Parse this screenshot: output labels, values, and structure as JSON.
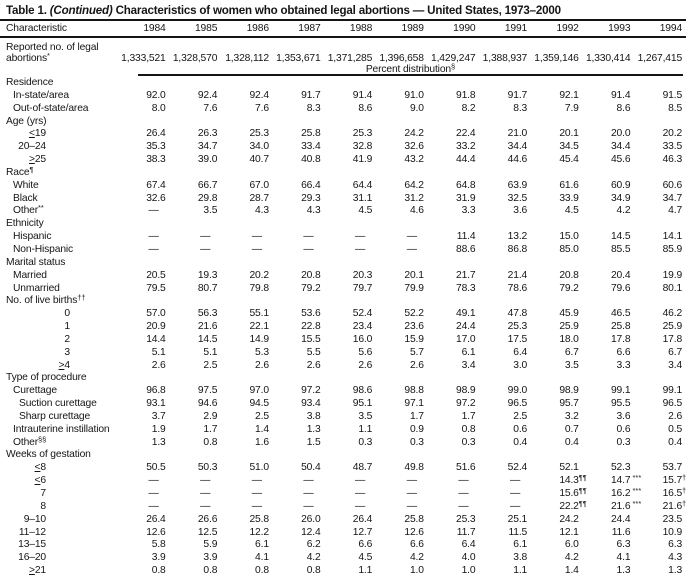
{
  "table": {
    "title_prefix": "Table 1. ",
    "title_continued": "(Continued)",
    "title_rest": " Characteristics of women who obtained legal abortions — United States, 1973–2000",
    "col_header": "Characteristic",
    "years": [
      "1984",
      "1985",
      "1986",
      "1987",
      "1988",
      "1989",
      "1990",
      "1991",
      "1992",
      "1993",
      "1994"
    ],
    "reported_label_line1": "Reported no. of legal",
    "reported_label_line2": "abortions",
    "reported_marker": "*",
    "reported_values": [
      "1,333,521",
      "1,328,570",
      "1,328,112",
      "1,353,671",
      "1,371,285",
      "1,396,658",
      "1,429,247",
      "1,388,937",
      "1,359,146",
      "1,330,414",
      "1,267,415"
    ],
    "subheader": "Percent distribution",
    "subheader_marker": "§",
    "rows": [
      {
        "t": "g",
        "ind": "g",
        "label": "Residence"
      },
      {
        "t": "r",
        "ind": "i1",
        "label": "In-state/area",
        "v": [
          "92.0",
          "92.4",
          "92.4",
          "91.7",
          "91.4",
          "91.0",
          "91.8",
          "91.7",
          "92.1",
          "91.4",
          "91.5"
        ]
      },
      {
        "t": "r",
        "ind": "i1",
        "label": "Out-of-state/area",
        "v": [
          "8.0",
          "7.6",
          "7.6",
          "8.3",
          "8.6",
          "9.0",
          "8.2",
          "8.3",
          "7.9",
          "8.6",
          "8.5"
        ]
      },
      {
        "t": "g",
        "ind": "g",
        "label": "Age (yrs)"
      },
      {
        "t": "r",
        "ind": "rn",
        "label": "≤19",
        "v": [
          "26.4",
          "26.3",
          "25.3",
          "25.8",
          "25.3",
          "24.2",
          "22.4",
          "21.0",
          "20.1",
          "20.0",
          "20.2"
        ]
      },
      {
        "t": "r",
        "ind": "rn",
        "label": "20–24",
        "v": [
          "35.3",
          "34.7",
          "34.0",
          "33.4",
          "32.8",
          "32.6",
          "33.2",
          "34.4",
          "34.5",
          "34.4",
          "33.5"
        ]
      },
      {
        "t": "r",
        "ind": "rn",
        "label": "≥25",
        "v": [
          "38.3",
          "39.0",
          "40.7",
          "40.8",
          "41.9",
          "43.2",
          "44.4",
          "44.6",
          "45.4",
          "45.6",
          "46.3"
        ]
      },
      {
        "t": "g",
        "ind": "g",
        "label": "Race",
        "marker": "¶"
      },
      {
        "t": "r",
        "ind": "i1",
        "label": "White",
        "v": [
          "67.4",
          "66.7",
          "67.0",
          "66.4",
          "64.4",
          "64.2",
          "64.8",
          "63.9",
          "61.6",
          "60.9",
          "60.6"
        ]
      },
      {
        "t": "r",
        "ind": "i1",
        "label": "Black",
        "v": [
          "32.6",
          "29.8",
          "28.7",
          "29.3",
          "31.1",
          "31.2",
          "31.9",
          "32.5",
          "33.9",
          "34.9",
          "34.7"
        ]
      },
      {
        "t": "r",
        "ind": "i1",
        "label": "Other",
        "marker": "**",
        "v": [
          "—",
          "3.5",
          "4.3",
          "4.3",
          "4.5",
          "4.6",
          "3.3",
          "3.6",
          "4.5",
          "4.2",
          "4.7"
        ]
      },
      {
        "t": "g",
        "ind": "g",
        "label": "Ethnicity"
      },
      {
        "t": "r",
        "ind": "i1",
        "label": "Hispanic",
        "v": [
          "—",
          "—",
          "—",
          "—",
          "—",
          "—",
          "11.4",
          "13.2",
          "15.0",
          "14.5",
          "14.1"
        ]
      },
      {
        "t": "r",
        "ind": "i1",
        "label": "Non-Hispanic",
        "v": [
          "—",
          "—",
          "—",
          "—",
          "—",
          "—",
          "88.6",
          "86.8",
          "85.0",
          "85.5",
          "85.9"
        ]
      },
      {
        "t": "g",
        "ind": "g",
        "label": "Marital status"
      },
      {
        "t": "r",
        "ind": "i1",
        "label": "Married",
        "v": [
          "20.5",
          "19.3",
          "20.2",
          "20.8",
          "20.3",
          "20.1",
          "21.7",
          "21.4",
          "20.8",
          "20.4",
          "19.9"
        ]
      },
      {
        "t": "r",
        "ind": "i1",
        "label": "Unmarried",
        "v": [
          "79.5",
          "80.7",
          "79.8",
          "79.2",
          "79.7",
          "79.9",
          "78.3",
          "78.6",
          "79.2",
          "79.6",
          "80.1"
        ]
      },
      {
        "t": "g",
        "ind": "g",
        "label": "No. of live births",
        "marker": "††"
      },
      {
        "t": "r",
        "ind": "rb",
        "label": "0",
        "v": [
          "57.0",
          "56.3",
          "55.1",
          "53.6",
          "52.4",
          "52.2",
          "49.1",
          "47.8",
          "45.9",
          "46.5",
          "46.2"
        ]
      },
      {
        "t": "r",
        "ind": "rb",
        "label": "1",
        "v": [
          "20.9",
          "21.6",
          "22.1",
          "22.8",
          "23.4",
          "23.6",
          "24.4",
          "25.3",
          "25.9",
          "25.8",
          "25.9"
        ]
      },
      {
        "t": "r",
        "ind": "rb",
        "label": "2",
        "v": [
          "14.4",
          "14.5",
          "14.9",
          "15.5",
          "16.0",
          "15.9",
          "17.0",
          "17.5",
          "18.0",
          "17.8",
          "17.8"
        ]
      },
      {
        "t": "r",
        "ind": "rb",
        "label": "3",
        "v": [
          "5.1",
          "5.1",
          "5.3",
          "5.5",
          "5.6",
          "5.7",
          "6.1",
          "6.4",
          "6.7",
          "6.6",
          "6.7"
        ]
      },
      {
        "t": "r",
        "ind": "rb",
        "label": "≥4",
        "v": [
          "2.6",
          "2.5",
          "2.6",
          "2.6",
          "2.6",
          "2.6",
          "3.4",
          "3.0",
          "3.5",
          "3.3",
          "3.4"
        ]
      },
      {
        "t": "g",
        "ind": "g",
        "label": "Type of procedure"
      },
      {
        "t": "r",
        "ind": "i1",
        "label": "Curettage",
        "v": [
          "96.8",
          "97.5",
          "97.0",
          "97.2",
          "98.6",
          "98.8",
          "98.9",
          "99.0",
          "98.9",
          "99.1",
          "99.1"
        ]
      },
      {
        "t": "r",
        "ind": "i2",
        "label": "Suction curettage",
        "v": [
          "93.1",
          "94.6",
          "94.5",
          "93.4",
          "95.1",
          "97.1",
          "97.2",
          "96.5",
          "95.7",
          "95.5",
          "96.5"
        ]
      },
      {
        "t": "r",
        "ind": "i2",
        "label": "Sharp curettage",
        "v": [
          "3.7",
          "2.9",
          "2.5",
          "3.8",
          "3.5",
          "1.7",
          "1.7",
          "2.5",
          "3.2",
          "3.6",
          "2.6"
        ]
      },
      {
        "t": "r",
        "ind": "i1",
        "label": "Intrauterine instillation",
        "v": [
          "1.9",
          "1.7",
          "1.4",
          "1.3",
          "1.1",
          "0.9",
          "0.8",
          "0.6",
          "0.7",
          "0.6",
          "0.5"
        ]
      },
      {
        "t": "r",
        "ind": "i1",
        "label": "Other",
        "marker": "§§",
        "v": [
          "1.3",
          "0.8",
          "1.6",
          "1.5",
          "0.3",
          "0.3",
          "0.3",
          "0.4",
          "0.4",
          "0.3",
          "0.4"
        ]
      },
      {
        "t": "g",
        "ind": "g",
        "label": "Weeks of gestation"
      },
      {
        "t": "r",
        "ind": "rn",
        "label": "≤8",
        "v": [
          "50.5",
          "50.3",
          "51.0",
          "50.4",
          "48.7",
          "49.8",
          "51.6",
          "52.4",
          "52.1",
          "52.3",
          "53.7"
        ]
      },
      {
        "t": "r",
        "ind": "rn",
        "label": "≤6",
        "v": [
          "—",
          "—",
          "—",
          "—",
          "—",
          "—",
          "—",
          "—",
          "14.3¶¶",
          "14.7 ***",
          "15.7†††"
        ]
      },
      {
        "t": "r",
        "ind": "rn",
        "label": "7",
        "v": [
          "—",
          "—",
          "—",
          "—",
          "—",
          "—",
          "—",
          "—",
          "15.6¶¶",
          "16.2 ***",
          "16.5†††"
        ]
      },
      {
        "t": "r",
        "ind": "rn",
        "label": "8",
        "v": [
          "—",
          "—",
          "—",
          "—",
          "—",
          "—",
          "—",
          "—",
          "22.2¶¶",
          "21.6 ***",
          "21.6†††"
        ]
      },
      {
        "t": "r",
        "ind": "rn",
        "label": "9–10",
        "v": [
          "26.4",
          "26.6",
          "25.8",
          "26.0",
          "26.4",
          "25.8",
          "25.3",
          "25.1",
          "24.2",
          "24.4",
          "23.5"
        ]
      },
      {
        "t": "r",
        "ind": "rn",
        "label": "11–12",
        "v": [
          "12.6",
          "12.5",
          "12.2",
          "12.4",
          "12.7",
          "12.6",
          "11.7",
          "11.5",
          "12.1",
          "11.6",
          "10.9"
        ]
      },
      {
        "t": "r",
        "ind": "rn",
        "label": "13–15",
        "v": [
          "5.8",
          "5.9",
          "6.1",
          "6.2",
          "6.6",
          "6.6",
          "6.4",
          "6.1",
          "6.0",
          "6.3",
          "6.3"
        ]
      },
      {
        "t": "r",
        "ind": "rn",
        "label": "16–20",
        "v": [
          "3.9",
          "3.9",
          "4.1",
          "4.2",
          "4.5",
          "4.2",
          "4.0",
          "3.8",
          "4.2",
          "4.1",
          "4.3"
        ]
      },
      {
        "t": "r",
        "ind": "rn",
        "label": "≥21",
        "v": [
          "0.8",
          "0.8",
          "0.8",
          "0.8",
          "1.1",
          "1.0",
          "1.0",
          "1.1",
          "1.4",
          "1.3",
          "1.3"
        ]
      }
    ]
  }
}
